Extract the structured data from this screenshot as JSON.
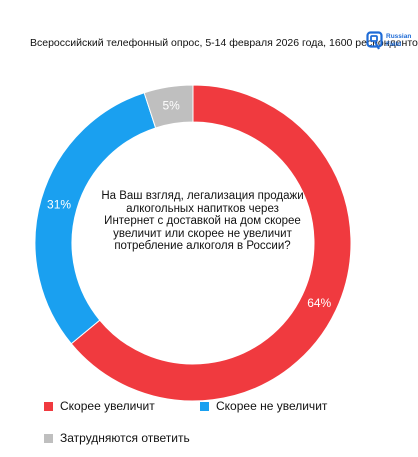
{
  "header": {
    "subtitle": "Всероссийский телефонный опрос, 5-14 февраля 2026 года, 1600 респондентов",
    "brand_line1": "Russian",
    "brand_line2": "Field",
    "brand_color": "#1e6bd6"
  },
  "chart_data": {
    "type": "pie",
    "donut": true,
    "title": "На Ваш взгляд, легализация продажи алкогольных напитков через Интернет с доставкой на дом скорее увеличит или скорее не увеличит потребление алкоголя в России?",
    "categories": [
      "Скорее увеличит",
      "Скорее не увеличит",
      "Затрудняются ответить"
    ],
    "values": [
      64,
      31,
      5
    ],
    "labels": [
      "64%",
      "31%",
      "5%"
    ],
    "colors": [
      "#f03a3f",
      "#1aa0f0",
      "#bfbfbf"
    ],
    "legend_position": "bottom"
  }
}
